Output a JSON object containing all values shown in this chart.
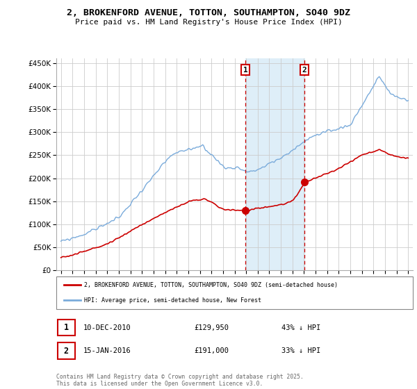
{
  "title": "2, BROKENFORD AVENUE, TOTTON, SOUTHAMPTON, SO40 9DZ",
  "subtitle": "Price paid vs. HM Land Registry's House Price Index (HPI)",
  "legend_line1": "2, BROKENFORD AVENUE, TOTTON, SOUTHAMPTON, SO40 9DZ (semi-detached house)",
  "legend_line2": "HPI: Average price, semi-detached house, New Forest",
  "footer": "Contains HM Land Registry data © Crown copyright and database right 2025.\nThis data is licensed under the Open Government Licence v3.0.",
  "sale1_date": "10-DEC-2010",
  "sale1_price": 129950,
  "sale1_hpi_pct": "43% ↓ HPI",
  "sale1_year": 2010.94,
  "sale1_val": 129950,
  "sale2_date": "15-JAN-2016",
  "sale2_price": 191000,
  "sale2_hpi_pct": "33% ↓ HPI",
  "sale2_year": 2016.04,
  "sale2_val": 191000,
  "ylim": [
    0,
    460000
  ],
  "xlim": [
    1994.6,
    2025.4
  ],
  "yticks": [
    0,
    50000,
    100000,
    150000,
    200000,
    250000,
    300000,
    350000,
    400000,
    450000
  ],
  "red_color": "#cc0000",
  "blue_color": "#7aabdb",
  "shade_color": "#deeef8",
  "grid_color": "#cccccc",
  "background_color": "#ffffff"
}
